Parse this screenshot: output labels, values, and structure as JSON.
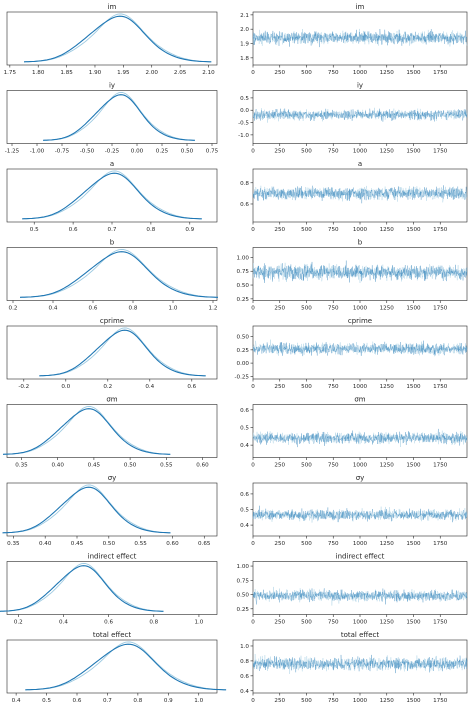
{
  "chart_data": [
    {
      "type": "line",
      "title": "im",
      "density_ticks": [
        "1.75",
        "1.80",
        "1.85",
        "1.90",
        "1.95",
        "2.00",
        "2.05",
        "2.10"
      ],
      "density_xlim": [
        1.745,
        2.115
      ],
      "density_peaks": [
        {
          "mean": 1.94,
          "sd": 0.05
        }
      ],
      "trace_yticks": [
        "1.8",
        "1.9",
        "2.0",
        "2.1"
      ],
      "trace_ylim": [
        1.75,
        2.12
      ],
      "trace_center": 1.94,
      "trace_sd": 0.05
    },
    {
      "type": "line",
      "title": "iy",
      "density_ticks": [
        "-1.25",
        "-1.00",
        "-0.75",
        "-0.50",
        "-0.25",
        "0.00",
        "0.25",
        "0.50",
        "0.75"
      ],
      "density_xlim": [
        -1.3,
        0.8
      ],
      "density_peaks": [
        {
          "mean": -0.18,
          "sd": 0.23
        }
      ],
      "trace_yticks": [
        "-1.0",
        "-0.5",
        "0.0",
        "0.5"
      ],
      "trace_ylim": [
        -1.35,
        0.8
      ],
      "trace_center": -0.18,
      "trace_sd": 0.23
    },
    {
      "type": "line",
      "title": "a",
      "density_ticks": [
        "0.5",
        "0.6",
        "0.7",
        "0.8",
        "0.9"
      ],
      "density_xlim": [
        0.43,
        0.97
      ],
      "density_peaks": [
        {
          "mean": 0.7,
          "sd": 0.07
        }
      ],
      "trace_yticks": [
        "0.6",
        "0.8"
      ],
      "trace_ylim": [
        0.43,
        0.93
      ],
      "trace_center": 0.7,
      "trace_sd": 0.07
    },
    {
      "type": "line",
      "title": "b",
      "density_ticks": [
        "0.2",
        "0.4",
        "0.6",
        "0.8",
        "1.0",
        "1.2"
      ],
      "density_xlim": [
        0.17,
        1.22
      ],
      "density_peaks": [
        {
          "mean": 0.73,
          "sd": 0.15
        }
      ],
      "trace_yticks": [
        "0.25",
        "0.50",
        "0.75",
        "1.00"
      ],
      "trace_ylim": [
        0.22,
        1.18
      ],
      "trace_center": 0.73,
      "trace_sd": 0.15
    },
    {
      "type": "line",
      "title": "cprime",
      "density_ticks": [
        "-0.2",
        "0.0",
        "0.2",
        "0.4",
        "0.6"
      ],
      "density_xlim": [
        -0.28,
        0.72
      ],
      "density_peaks": [
        {
          "mean": 0.27,
          "sd": 0.12
        }
      ],
      "trace_yticks": [
        "-0.25",
        "0.00",
        "0.25",
        "0.50"
      ],
      "trace_ylim": [
        -0.3,
        0.7
      ],
      "trace_center": 0.27,
      "trace_sd": 0.12
    },
    {
      "type": "line",
      "title": "σm",
      "density_ticks": [
        "0.35",
        "0.40",
        "0.45",
        "0.50",
        "0.55",
        "0.60"
      ],
      "density_xlim": [
        0.33,
        0.62
      ],
      "density_peaks": [
        {
          "mean": 0.44,
          "sd": 0.035
        }
      ],
      "trace_yticks": [
        "0.4",
        "0.5",
        "0.6"
      ],
      "trace_ylim": [
        0.33,
        0.63
      ],
      "trace_center": 0.44,
      "trace_sd": 0.035
    },
    {
      "type": "line",
      "title": "σy",
      "density_ticks": [
        "0.35",
        "0.40",
        "0.45",
        "0.50",
        "0.55",
        "0.60",
        "0.65"
      ],
      "density_xlim": [
        0.34,
        0.67
      ],
      "density_peaks": [
        {
          "mean": 0.465,
          "sd": 0.04
        }
      ],
      "trace_yticks": [
        "0.4",
        "0.5",
        "0.6"
      ],
      "trace_ylim": [
        0.33,
        0.67
      ],
      "trace_center": 0.465,
      "trace_sd": 0.04
    },
    {
      "type": "line",
      "title": "indirect effect",
      "density_ticks": [
        "0.2",
        "0.4",
        "0.6",
        "0.8",
        "1.0"
      ],
      "density_xlim": [
        0.15,
        1.08
      ],
      "density_peaks": [
        {
          "mean": 0.48,
          "sd": 0.11
        }
      ],
      "trace_yticks": [
        "0.25",
        "0.50",
        "0.75",
        "1.00"
      ],
      "trace_ylim": [
        0.15,
        1.08
      ],
      "trace_center": 0.48,
      "trace_sd": 0.11
    },
    {
      "type": "line",
      "title": "total effect",
      "density_ticks": [
        "0.4",
        "0.5",
        "0.6",
        "0.7",
        "0.8",
        "0.9",
        "1.0"
      ],
      "density_xlim": [
        0.37,
        1.06
      ],
      "density_peaks": [
        {
          "mean": 0.76,
          "sd": 0.1
        }
      ],
      "trace_yticks": [
        "0.4",
        "0.6",
        "0.8",
        "1.0"
      ],
      "trace_ylim": [
        0.37,
        1.08
      ],
      "trace_center": 0.76,
      "trace_sd": 0.1
    }
  ],
  "trace_xticks": [
    "0",
    "250",
    "500",
    "750",
    "1000",
    "1250",
    "1500",
    "1750"
  ],
  "trace_xlim": [
    0,
    2000
  ],
  "colors": {
    "line": "#1f77b4",
    "light": "#9ecae1"
  }
}
